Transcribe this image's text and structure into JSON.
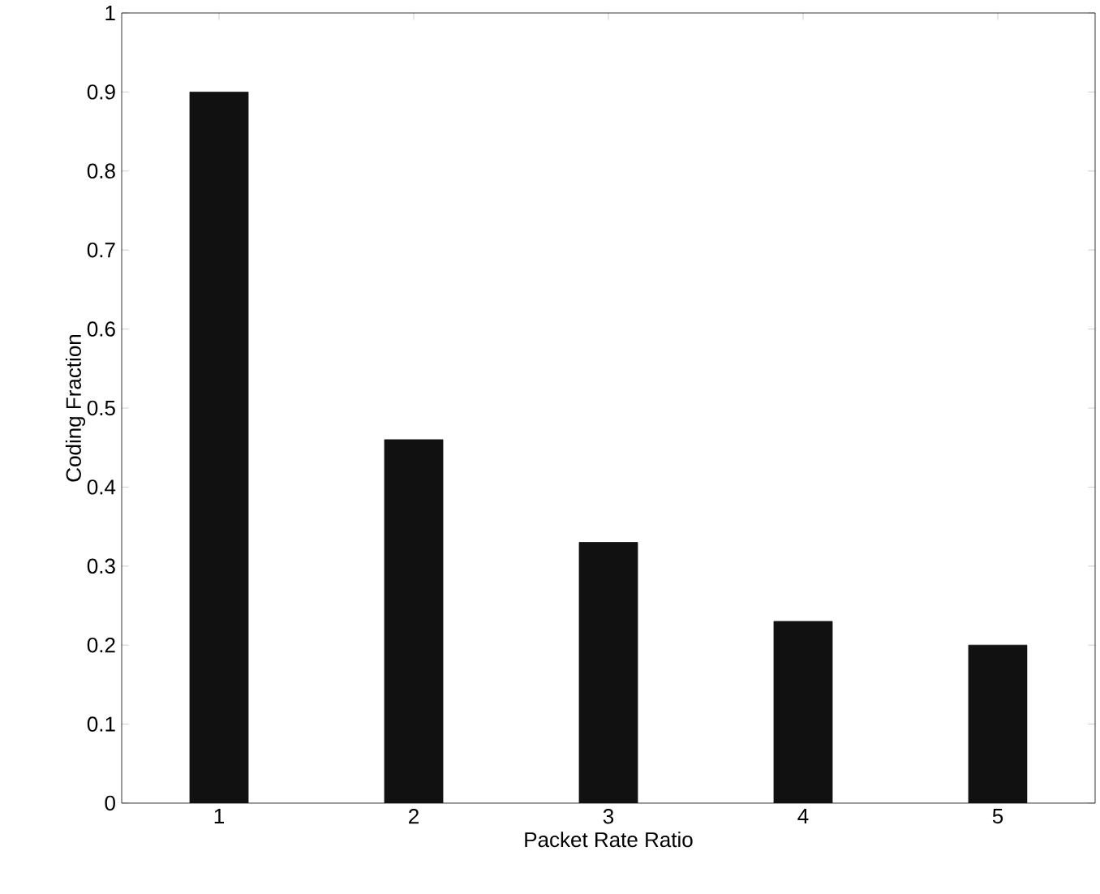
{
  "chart_data": {
    "type": "bar",
    "xlabel": "Packet Rate Ratio",
    "ylabel": "Coding Fraction",
    "categories": [
      "1",
      "2",
      "3",
      "4",
      "5"
    ],
    "values": [
      0.9,
      0.46,
      0.33,
      0.23,
      0.2
    ],
    "color": "#111111",
    "ylim": [
      0,
      1
    ],
    "yticks": [
      0,
      0.1,
      0.2,
      0.3,
      0.4,
      0.5,
      0.6,
      0.7,
      0.8,
      0.9,
      1
    ],
    "grid": false
  }
}
